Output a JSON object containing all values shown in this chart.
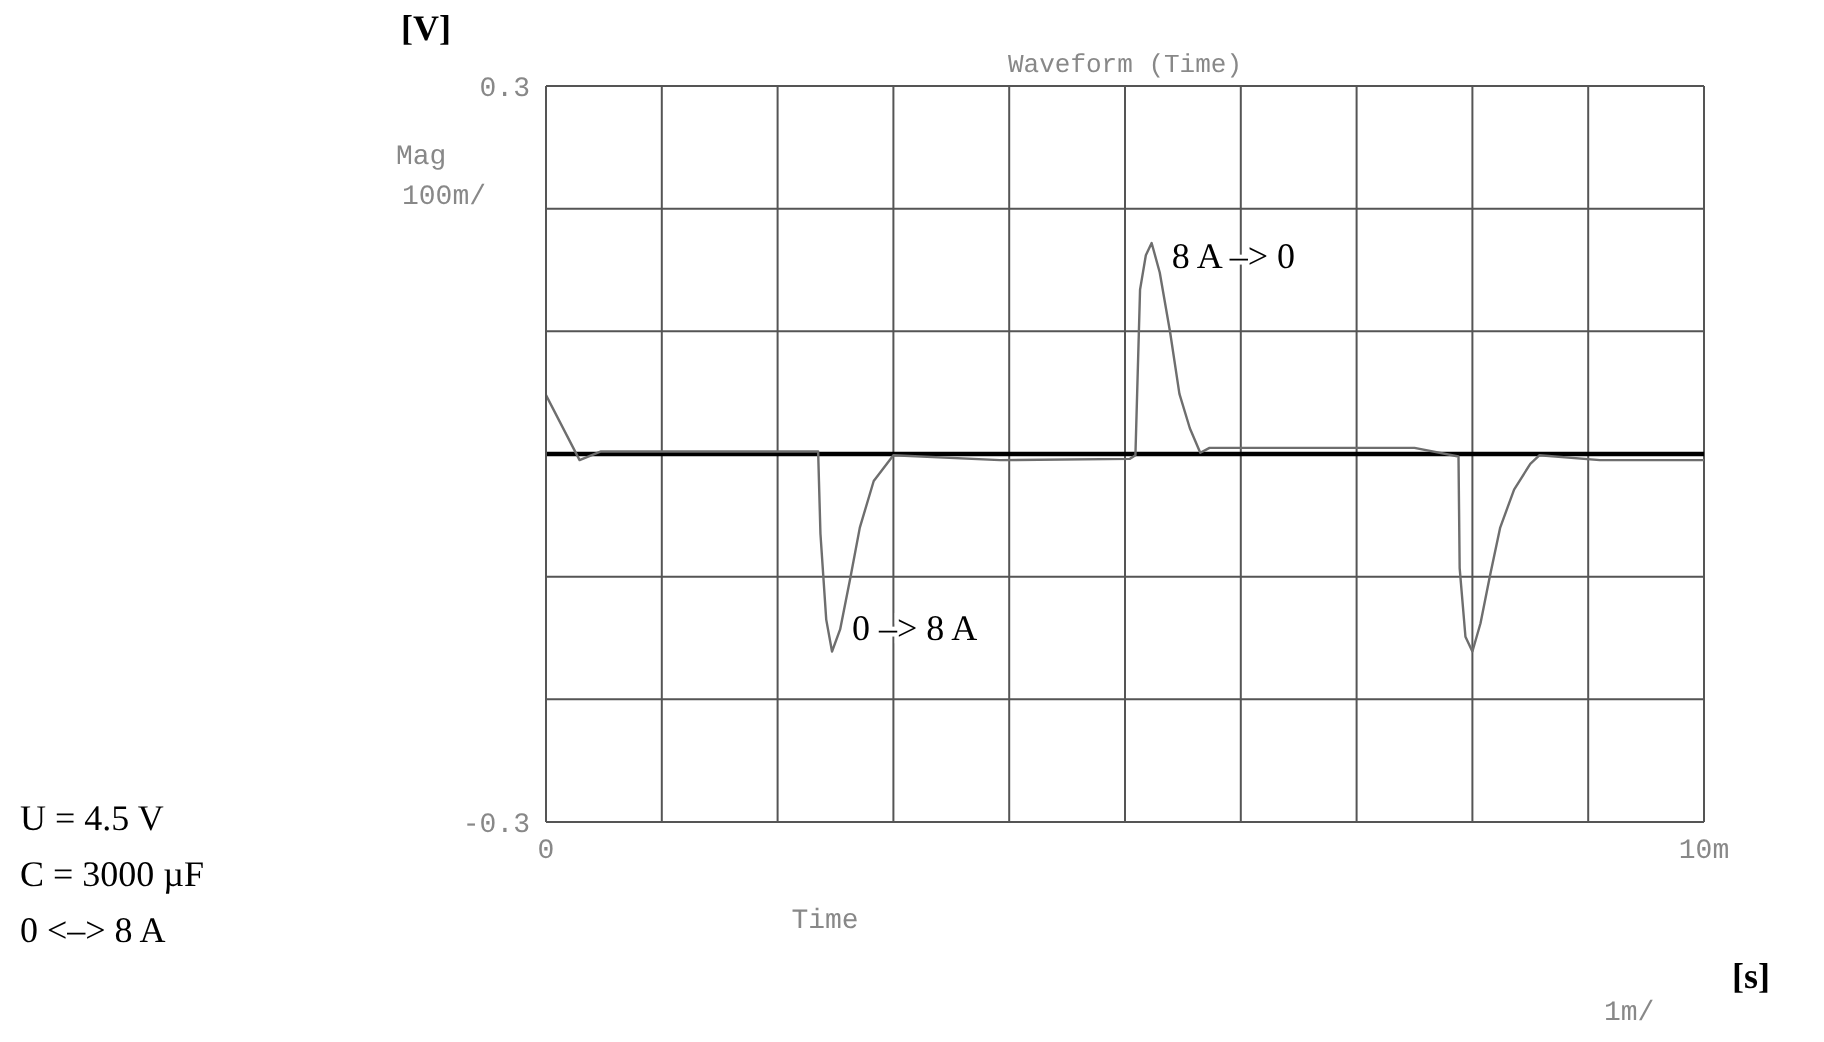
{
  "chart_data": {
    "type": "line",
    "title": "Waveform (Time)",
    "xlabel": "Time",
    "ylabel": "[V]",
    "x": [
      0,
      0.29,
      0.47,
      1.16,
      2.19,
      2.35,
      2.37,
      2.42,
      2.47,
      2.54,
      2.63,
      2.71,
      2.83,
      3.0,
      3.92,
      5.04,
      5.09,
      5.13,
      5.18,
      5.23,
      5.3,
      5.39,
      5.47,
      5.56,
      5.65,
      5.73,
      6.51,
      7.5,
      7.88,
      7.89,
      7.94,
      8.0,
      8.07,
      8.15,
      8.24,
      8.36,
      8.5,
      8.58,
      9.1,
      10
    ],
    "series": [
      {
        "color": "#6e6e6e",
        "values": [
          0.048,
          -0.005,
          0.002,
          0.002,
          0.002,
          0.002,
          -0.065,
          -0.135,
          -0.161,
          -0.143,
          -0.1,
          -0.06,
          -0.022,
          -0.001,
          -0.005,
          -0.004,
          -0.001,
          0.134,
          0.162,
          0.172,
          0.148,
          0.099,
          0.049,
          0.021,
          0.001,
          0.005,
          0.005,
          0.005,
          -0.002,
          -0.093,
          -0.149,
          -0.161,
          -0.138,
          -0.1,
          -0.06,
          -0.029,
          -0.008,
          -0.001,
          -0.005,
          -0.005
        ]
      }
    ],
    "xlim": [
      0,
      10
    ],
    "xticks": [
      0,
      {
        "value": 1,
        "label": null
      },
      {
        "value": 2,
        "label": null
      },
      {
        "value": 3,
        "label": null
      },
      {
        "value": 4,
        "label": null
      },
      {
        "value": 5,
        "label": null
      },
      {
        "value": 6,
        "label": null
      },
      {
        "value": 7,
        "label": null
      },
      {
        "value": 8,
        "label": null
      },
      {
        "value": 9,
        "label": null
      },
      {
        "value": 10,
        "label": "10m"
      }
    ],
    "ylim": [
      -0.3,
      0.3
    ],
    "yticks": [
      -0.3,
      {
        "value": -0.2,
        "label": null
      },
      {
        "value": -0.1,
        "label": null
      },
      {
        "value": 0,
        "label": null
      },
      {
        "value": 0.1,
        "label": null
      },
      {
        "value": 0.2,
        "label": null
      },
      0.3
    ],
    "grid": true,
    "marker": "none",
    "line_style": "solid",
    "ref_lines": [
      {
        "axis": "y",
        "value": 0,
        "color": "#000000"
      }
    ],
    "annotations": [
      {
        "text": "0 –> 8 A",
        "x": 2.47,
        "y": -0.161
      },
      {
        "text": "8 A –> 0",
        "x": 5.23,
        "y": 0.172
      },
      "Mag",
      "100m/",
      "1m/",
      "[s]",
      "U = 4.5 V",
      "C = 3000 µF",
      "0 <–> 8 A"
    ]
  }
}
